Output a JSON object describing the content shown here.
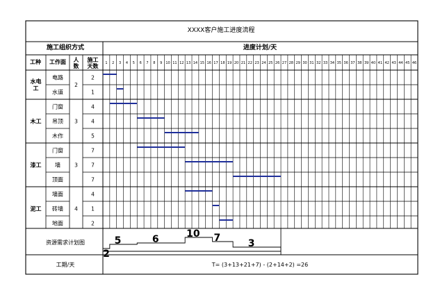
{
  "title": "XXXX客户施工进度流程",
  "sections": {
    "organization": "施工组织方式",
    "schedule": "进度计划/天"
  },
  "columns": {
    "trade": "工种",
    "work_surface": "工作面",
    "workers": "人数",
    "duration": "施工天数"
  },
  "day_labels": [
    "1",
    "2",
    "3",
    "4",
    "5",
    "6",
    "7",
    "8",
    "9",
    "10",
    "11",
    "12",
    "13",
    "14",
    "15",
    "16",
    "17",
    "18",
    "19",
    "20",
    "21",
    "22",
    "23",
    "24",
    "25",
    "26",
    "27",
    "28",
    "29",
    "30",
    "31",
    "32",
    "33",
    "34",
    "35",
    "36",
    "37",
    "38",
    "39",
    "40",
    "41",
    "42",
    "43",
    "44",
    "45",
    "46"
  ],
  "groups": [
    {
      "trade": "水电工",
      "workers": "2",
      "rows": [
        {
          "work": "电路",
          "days": "2",
          "start": 1,
          "end": 2
        },
        {
          "work": "水道",
          "days": "1",
          "start": 3,
          "end": 3
        }
      ]
    },
    {
      "trade": "木工",
      "workers": "3",
      "rows": [
        {
          "work": "门窗",
          "days": "4",
          "start": 2,
          "end": 5
        },
        {
          "work": "吊顶",
          "days": "4",
          "start": 6,
          "end": 9
        },
        {
          "work": "木作",
          "days": "5",
          "start": 10,
          "end": 14
        }
      ]
    },
    {
      "trade": "漆工",
      "workers": "3",
      "rows": [
        {
          "work": "门窗",
          "days": "7",
          "start": 6,
          "end": 12
        },
        {
          "work": "墙",
          "days": "7",
          "start": 13,
          "end": 19
        },
        {
          "work": "顶面",
          "days": "7",
          "start": 20,
          "end": 26
        }
      ]
    },
    {
      "trade": "泥工",
      "workers": "4",
      "rows": [
        {
          "work": "墙面",
          "days": "4",
          "start": 13,
          "end": 16
        },
        {
          "work": "砖墙",
          "days": "1",
          "start": 17,
          "end": 17
        },
        {
          "work": "地面",
          "days": "2",
          "start": 18,
          "end": 19
        }
      ]
    }
  ],
  "resource_plan": {
    "label": "资源需求计划图",
    "steps": [
      {
        "value": "2",
        "start": 1,
        "end": 1
      },
      {
        "value": "5",
        "start": 2,
        "end": 5
      },
      {
        "value": "6",
        "start": 6,
        "end": 12
      },
      {
        "value": "10",
        "start": 13,
        "end": 16
      },
      {
        "value": "7",
        "start": 17,
        "end": 19
      },
      {
        "value": "3",
        "start": 20,
        "end": 26
      }
    ]
  },
  "duration": {
    "label": "工期/天",
    "formula": "T= (3+13+21+7) - (2+14+2) =26"
  },
  "colors": {
    "bar": "#1f2f9a",
    "line": "#000000"
  }
}
